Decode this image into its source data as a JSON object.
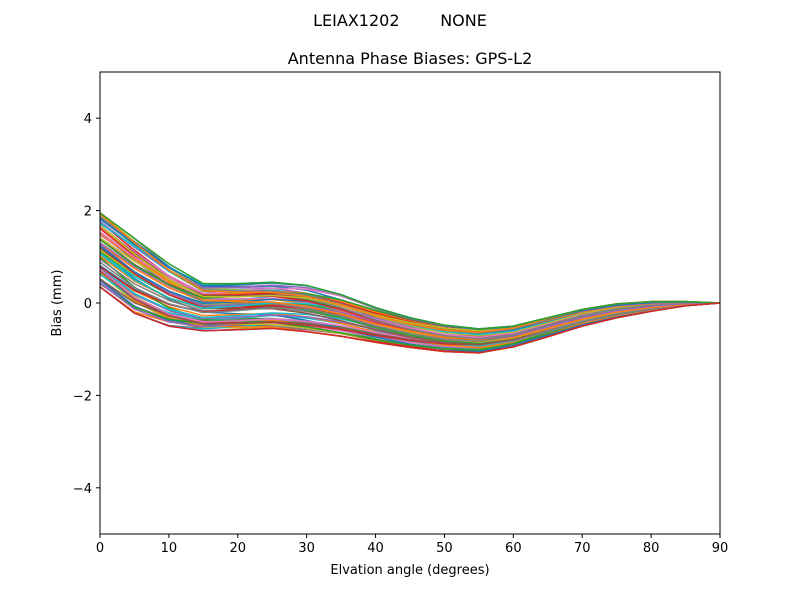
{
  "figure": {
    "suptitle": "LEIAX1202        NONE"
  },
  "chart_data": {
    "type": "line",
    "title": "Antenna Phase Biases: GPS-L2",
    "xlabel": "Elvation angle (degrees)",
    "ylabel": "Bias (mm)",
    "xlim": [
      0,
      90
    ],
    "ylim": [
      -5,
      5
    ],
    "xticks": [
      0,
      10,
      20,
      30,
      40,
      50,
      60,
      70,
      80,
      90
    ],
    "yticks": [
      -4,
      -2,
      0,
      2,
      4
    ],
    "ytick_labels": [
      "−4",
      "−2",
      "0",
      "2",
      "4"
    ],
    "grid": false,
    "x": [
      0,
      5,
      10,
      15,
      20,
      25,
      30,
      35,
      40,
      45,
      50,
      55,
      60,
      65,
      70,
      75,
      80,
      85,
      90
    ],
    "series_count": 72,
    "envelope": {
      "upper": [
        1.95,
        1.4,
        0.85,
        0.42,
        0.42,
        0.45,
        0.38,
        0.18,
        -0.1,
        -0.32,
        -0.48,
        -0.56,
        -0.5,
        -0.32,
        -0.14,
        -0.02,
        0.03,
        0.03,
        0.0
      ],
      "lower": [
        0.35,
        -0.22,
        -0.5,
        -0.6,
        -0.58,
        -0.55,
        -0.62,
        -0.72,
        -0.85,
        -0.96,
        -1.05,
        -1.08,
        -0.95,
        -0.73,
        -0.5,
        -0.32,
        -0.18,
        -0.06,
        0.0
      ]
    },
    "colors": [
      "#1f77b4",
      "#ff7f0e",
      "#2ca02c",
      "#d62728",
      "#9467bd",
      "#8c564b",
      "#e377c2",
      "#7f7f7f",
      "#bcbd22",
      "#17becf"
    ]
  }
}
